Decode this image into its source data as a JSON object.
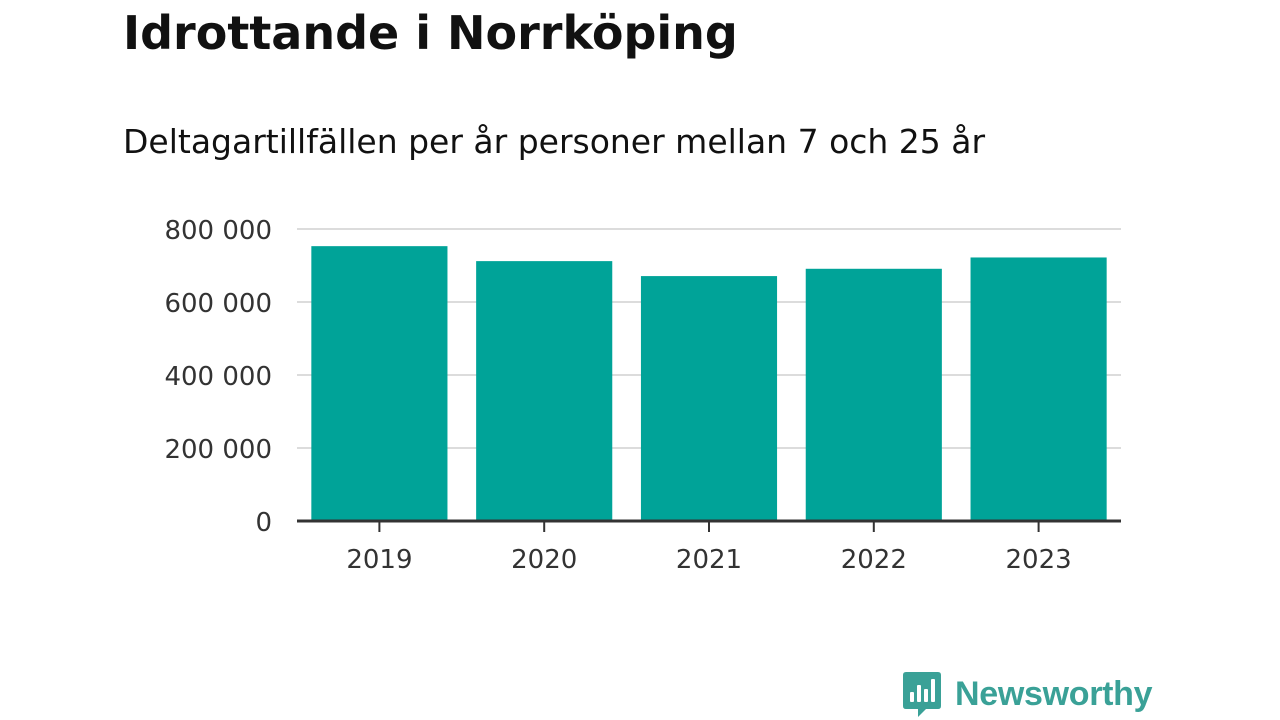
{
  "chart_data": {
    "type": "bar",
    "title": "Idrottande i Norrköping",
    "subtitle": "Deltagartillfällen per år personer mellan 7 och 25 år",
    "categories": [
      "2019",
      "2020",
      "2021",
      "2022",
      "2023"
    ],
    "values": [
      753000,
      712000,
      671000,
      691000,
      722000
    ],
    "ylim": [
      0,
      800000
    ],
    "yticks": [
      0,
      200000,
      400000,
      600000,
      800000
    ],
    "ytick_labels": [
      "0",
      "200 000",
      "400 000",
      "600 000",
      "800 000"
    ],
    "bar_color": "#00a398",
    "grid": true,
    "legend": "none",
    "xlabel": "",
    "ylabel": ""
  },
  "brand": {
    "name": "Newsworthy",
    "color": "#3aa197",
    "icon": "newsworthy-chart-bubble-icon"
  }
}
